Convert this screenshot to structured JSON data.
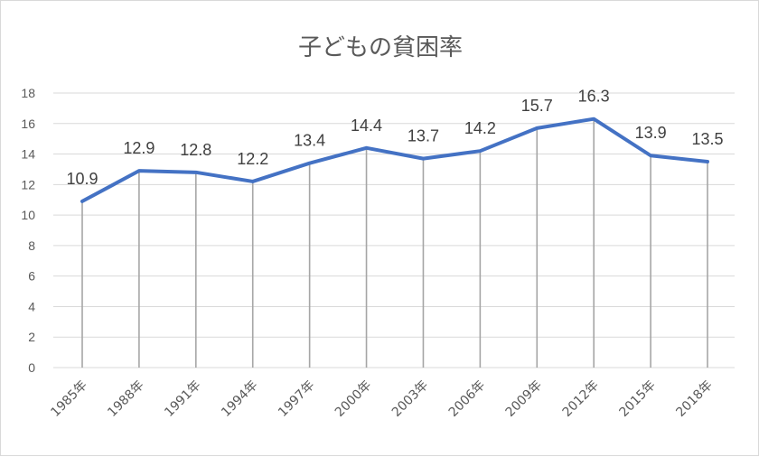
{
  "chart_data": {
    "type": "line",
    "title": "子どもの貧困率",
    "xlabel": "",
    "ylabel": "",
    "categories": [
      "1985年",
      "1988年",
      "1991年",
      "1994年",
      "1997年",
      "2000年",
      "2003年",
      "2006年",
      "2009年",
      "2012年",
      "2015年",
      "2018年"
    ],
    "series": [
      {
        "values": [
          10.9,
          12.9,
          12.8,
          12.2,
          13.4,
          14.4,
          13.7,
          14.2,
          15.7,
          16.3,
          13.9,
          13.5
        ],
        "labels": [
          "10.9",
          "12.9",
          "12.8",
          "12.2",
          "13.4",
          "14.4",
          "13.7",
          "14.2",
          "15.7",
          "16.3",
          "13.9",
          "13.5"
        ],
        "color": "#4472c4"
      }
    ],
    "ylim": [
      0,
      18
    ],
    "yticks": [
      "0",
      "2",
      "4",
      "6",
      "8",
      "10",
      "12",
      "14",
      "16",
      "18"
    ],
    "grid": true,
    "legend": "none",
    "drop_lines": true
  }
}
